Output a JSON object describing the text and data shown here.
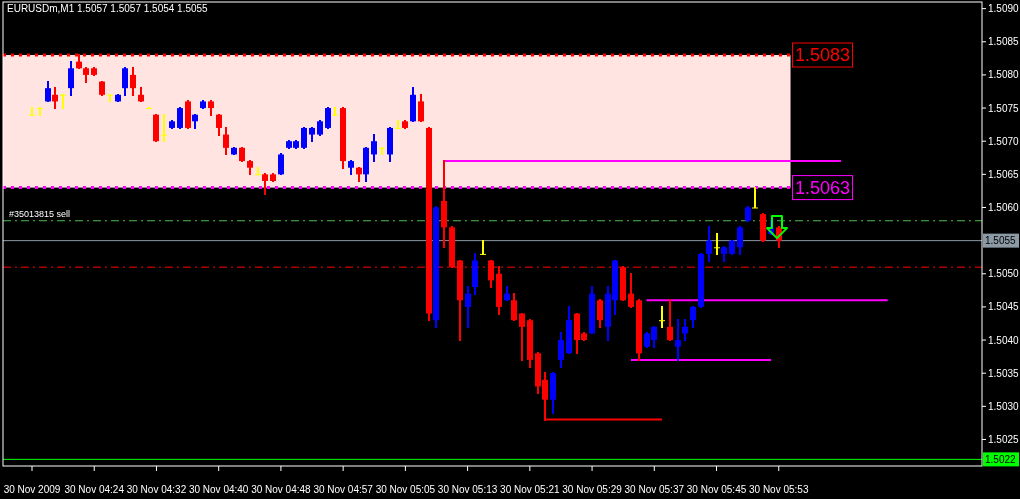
{
  "chart_data": {
    "type": "candlestick",
    "title": "EURUSDm,M1  1.5057 1.5057 1.5054 1.5055",
    "categories": [
      "30 Nov 2009",
      null,
      null,
      null,
      null,
      null,
      null,
      null,
      "30 Nov 04:24",
      null,
      null,
      null,
      null,
      null,
      null,
      null,
      "30 Nov 04:32",
      null,
      null,
      null,
      null,
      null,
      null,
      null,
      "30 Nov 04:40",
      null,
      null,
      null,
      null,
      null,
      null,
      null,
      "30 Nov 04:48",
      null,
      null,
      null,
      null,
      null,
      null,
      null,
      "30 Nov 04:57",
      null,
      null,
      null,
      null,
      null,
      null,
      null,
      "30 Nov 05:05",
      null,
      null,
      null,
      null,
      null,
      null,
      null,
      "30 Nov 05:13",
      null,
      null,
      null,
      null,
      null,
      null,
      null,
      "30 Nov 05:21",
      null,
      null,
      null,
      null,
      null,
      null,
      null,
      "30 Nov 05:29",
      null,
      null,
      null,
      null,
      null,
      null,
      null,
      "30 Nov 05:37",
      null,
      null,
      null,
      null,
      null,
      null,
      null,
      "30 Nov 05:45",
      null,
      null,
      null,
      null,
      null,
      null,
      null,
      "30 Nov 05:53",
      null,
      null,
      null,
      null,
      null,
      null,
      null,
      null,
      null,
      null,
      null,
      null,
      null,
      null,
      null,
      null,
      null,
      null,
      null,
      null,
      null,
      null,
      null,
      null,
      null,
      null
    ],
    "ohlc": [
      [
        1.5074,
        1.5075,
        1.5074,
        1.5074
      ],
      [
        1.5075,
        1.5075,
        1.5074,
        1.5075
      ],
      [
        1.5076,
        1.5079,
        1.5076,
        1.5078
      ],
      [
        1.5077,
        1.5078,
        1.5075,
        1.5076
      ],
      [
        1.5077,
        1.5077,
        1.5075,
        1.5077
      ],
      [
        1.5078,
        1.5082,
        1.5077,
        1.5081
      ],
      [
        1.5082,
        1.5083,
        1.5081,
        1.5081
      ],
      [
        1.5081,
        1.5081,
        1.5079,
        1.508
      ],
      [
        1.5081,
        1.5081,
        1.508,
        1.508
      ],
      [
        1.5079,
        1.5079,
        1.5077,
        1.5077
      ],
      [
        1.5077,
        1.5077,
        1.5076,
        1.5077
      ],
      [
        1.5076,
        1.5077,
        1.5076,
        1.5077
      ],
      [
        1.5078,
        1.5081,
        1.5077,
        1.5081
      ],
      [
        1.508,
        1.5081,
        1.5077,
        1.5078
      ],
      [
        1.5077,
        1.5078,
        1.5076,
        1.5076
      ],
      [
        1.5075,
        1.5075,
        1.5075,
        1.5075
      ],
      [
        1.5074,
        1.5074,
        1.507,
        1.507
      ],
      [
        1.5071,
        1.5074,
        1.507,
        1.5071
      ],
      [
        1.5072,
        1.5073,
        1.5072,
        1.5073
      ],
      [
        1.5072,
        1.5075,
        1.5072,
        1.5075
      ],
      [
        1.5076,
        1.5076,
        1.5072,
        1.5072
      ],
      [
        1.5073,
        1.5074,
        1.5072,
        1.5074
      ],
      [
        1.5075,
        1.5076,
        1.5075,
        1.5076
      ],
      [
        1.5076,
        1.5076,
        1.5074,
        1.5075
      ],
      [
        1.5074,
        1.5074,
        1.5071,
        1.5072
      ],
      [
        1.5071,
        1.5072,
        1.5068,
        1.5069
      ],
      [
        1.5068,
        1.5069,
        1.5068,
        1.5069
      ],
      [
        1.5069,
        1.5069,
        1.5067,
        1.5067
      ],
      [
        1.5067,
        1.5067,
        1.5065,
        1.5066
      ],
      [
        1.5065,
        1.5066,
        1.5065,
        1.5065
      ],
      [
        1.5065,
        1.5065,
        1.5062,
        1.5064
      ],
      [
        1.5065,
        1.5065,
        1.5064,
        1.5064
      ],
      [
        1.5065,
        1.5068,
        1.5065,
        1.5068
      ],
      [
        1.5069,
        1.507,
        1.5069,
        1.507
      ],
      [
        1.5069,
        1.507,
        1.5069,
        1.507
      ],
      [
        1.5069,
        1.5072,
        1.5069,
        1.5072
      ],
      [
        1.5071,
        1.5072,
        1.507,
        1.5072
      ],
      [
        1.5071,
        1.5073,
        1.5071,
        1.5073
      ],
      [
        1.5072,
        1.5075,
        1.5072,
        1.5075
      ],
      [
        1.5074,
        1.5075,
        1.5074,
        1.5074
      ],
      [
        1.5075,
        1.5075,
        1.5066,
        1.5067
      ],
      [
        1.5066,
        1.5067,
        1.5065,
        1.5067
      ],
      [
        1.5066,
        1.5066,
        1.5064,
        1.5065
      ],
      [
        1.5065,
        1.5069,
        1.5064,
        1.5069
      ],
      [
        1.5068,
        1.5071,
        1.5067,
        1.507
      ],
      [
        1.5069,
        1.5069,
        1.5068,
        1.5069
      ],
      [
        1.5068,
        1.5072,
        1.5067,
        1.5072
      ],
      [
        1.5072,
        1.5073,
        1.5072,
        1.5072
      ],
      [
        1.5073,
        1.5073,
        1.5072,
        1.5072
      ],
      [
        1.5073,
        1.5078,
        1.5073,
        1.5077
      ],
      [
        1.5076,
        1.5077,
        1.5073,
        1.5073
      ],
      [
        1.5072,
        1.5072,
        1.5043,
        1.5044
      ],
      [
        1.5043,
        1.506,
        1.5042,
        1.506
      ],
      [
        1.5061,
        1.5067,
        1.5054,
        1.5057
      ],
      [
        1.5057,
        1.5057,
        1.5051,
        1.5051
      ],
      [
        1.5052,
        1.5052,
        1.504,
        1.5046
      ],
      [
        1.5045,
        1.5048,
        1.5042,
        1.5047
      ],
      [
        1.5048,
        1.5053,
        1.5047,
        1.5052
      ],
      [
        1.5053,
        1.5055,
        1.5053,
        1.5053
      ],
      [
        1.5052,
        1.5052,
        1.5048,
        1.5049
      ],
      [
        1.505,
        1.5051,
        1.5044,
        1.5045
      ],
      [
        1.5046,
        1.5048,
        1.5046,
        1.5047
      ],
      [
        1.5046,
        1.5047,
        1.5043,
        1.5043
      ],
      [
        1.5044,
        1.5044,
        1.5037,
        1.5042
      ],
      [
        1.5043,
        1.5043,
        1.5036,
        1.5037
      ],
      [
        1.5038,
        1.5038,
        1.5032,
        1.5033
      ],
      [
        1.5034,
        1.5035,
        1.5028,
        1.5031
      ],
      [
        1.5031,
        1.5035,
        1.5029,
        1.5035
      ],
      [
        1.5037,
        1.5041,
        1.5036,
        1.504
      ],
      [
        1.5038,
        1.5045,
        1.5038,
        1.5043
      ],
      [
        1.5044,
        1.5044,
        1.5038,
        1.504
      ],
      [
        1.5041,
        1.5041,
        1.504,
        1.504
      ],
      [
        1.5041,
        1.5048,
        1.5041,
        1.5047
      ],
      [
        1.5046,
        1.5046,
        1.5042,
        1.5043
      ],
      [
        1.5042,
        1.5048,
        1.504,
        1.5047
      ],
      [
        1.5046,
        1.5052,
        1.5044,
        1.5052
      ],
      [
        1.5051,
        1.5051,
        1.5046,
        1.5046
      ],
      [
        1.5047,
        1.505,
        1.5045,
        1.5045
      ],
      [
        1.5046,
        1.5046,
        1.5037,
        1.5038
      ],
      [
        1.5039,
        1.5041,
        1.5039,
        1.5041
      ],
      [
        1.504,
        1.5042,
        1.5039,
        1.5042
      ],
      [
        1.5043,
        1.5045,
        1.5042,
        1.5043
      ],
      [
        1.5042,
        1.5046,
        1.504,
        1.504
      ],
      [
        1.5039,
        1.5043,
        1.5037,
        1.504
      ],
      [
        1.5041,
        1.5043,
        1.504,
        1.5042
      ],
      [
        1.5043,
        1.5045,
        1.5042,
        1.5045
      ],
      [
        1.5045,
        1.5053,
        1.5045,
        1.5053
      ],
      [
        1.5053,
        1.5057,
        1.5052,
        1.5055
      ],
      [
        1.5054,
        1.5056,
        1.5053,
        1.5054
      ],
      [
        1.5053,
        1.5054,
        1.5052,
        1.5054
      ],
      [
        1.5053,
        1.5055,
        1.5053,
        1.5055
      ],
      [
        1.5054,
        1.5057,
        1.5053,
        1.5057
      ],
      [
        1.5058,
        1.506,
        1.5058,
        1.506
      ],
      [
        1.506,
        1.5063,
        1.506,
        1.506
      ],
      [
        1.5059,
        1.5059,
        1.5055,
        1.5055
      ],
      [
        1.5056,
        1.5058,
        1.5056,
        1.5057
      ],
      [
        1.5057,
        1.5057,
        1.5054,
        1.5055
      ],
      null,
      null,
      null,
      null,
      null,
      null,
      null,
      null,
      null,
      null,
      null,
      null,
      null,
      null,
      null,
      null,
      null,
      null,
      null,
      null,
      null,
      null,
      null,
      null,
      null,
      null
    ],
    "colors": [
      "#ffff00",
      "#ffff00",
      "#0000ff",
      "#ff0000",
      "#ffff00",
      "#0000ff",
      "#ff0000",
      "#ff0000",
      "#ff0000",
      "#ff0000",
      "#ffff00",
      "#0000ff",
      "#0000ff",
      "#ff0000",
      "#ff0000",
      "#ffff00",
      "#ff0000",
      "#ffff00",
      "#0000ff",
      "#0000ff",
      "#ff0000",
      "#0000ff",
      "#0000ff",
      "#ff0000",
      "#ff0000",
      "#ff0000",
      "#0000ff",
      "#ff0000",
      "#ff0000",
      "#ffff00",
      "#ff0000",
      "#ff0000",
      "#0000ff",
      "#0000ff",
      "#0000ff",
      "#0000ff",
      "#0000ff",
      "#0000ff",
      "#0000ff",
      "#ffff00",
      "#ff0000",
      "#0000ff",
      "#ff0000",
      "#0000ff",
      "#0000ff",
      "#ffff00",
      "#0000ff",
      "#ffff00",
      "#ff0000",
      "#0000ff",
      "#ff0000",
      "#ff0000",
      "#0000ff",
      "#ff0000",
      "#ff0000",
      "#ff0000",
      "#0000ff",
      "#0000ff",
      "#ffff00",
      "#ff0000",
      "#ff0000",
      "#0000ff",
      "#ff0000",
      "#ff0000",
      "#ff0000",
      "#ff0000",
      "#ff0000",
      "#0000ff",
      "#0000ff",
      "#0000ff",
      "#ff0000",
      "#ff0000",
      "#0000ff",
      "#ff0000",
      "#0000ff",
      "#0000ff",
      "#ff0000",
      "#ff0000",
      "#ff0000",
      "#0000ff",
      "#0000ff",
      "#ffff00",
      "#ff0000",
      "#0000ff",
      "#0000ff",
      "#0000ff",
      "#0000ff",
      "#0000ff",
      "#ffff00",
      "#0000ff",
      "#0000ff",
      "#0000ff",
      "#0000ff",
      "#ffff00",
      "#ff0000",
      "#0000ff",
      "#ff0000",
      null,
      null,
      null,
      null,
      null,
      null,
      null,
      null,
      null,
      null,
      null,
      null,
      null,
      null,
      null,
      null,
      null,
      null,
      null,
      null,
      null,
      null,
      null,
      null,
      null,
      null
    ],
    "series": [
      {
        "type": "line",
        "color": "#ff00ff",
        "values": [
          null,
          null,
          null,
          null,
          null,
          null,
          null,
          null,
          null,
          null,
          null,
          null,
          null,
          null,
          null,
          null,
          null,
          null,
          null,
          null,
          null,
          null,
          null,
          null,
          null,
          null,
          null,
          null,
          null,
          null,
          null,
          null,
          null,
          null,
          null,
          null,
          null,
          null,
          null,
          null,
          null,
          null,
          null,
          null,
          null,
          null,
          null,
          null,
          null,
          null,
          null,
          null,
          null,
          1.5067,
          1.5067,
          1.5067,
          1.5067,
          1.5067,
          1.5067,
          1.5067,
          1.5067,
          1.5067,
          1.5067,
          1.5067,
          1.5067,
          1.5067,
          1.5067,
          1.5067,
          1.5067,
          1.5067,
          1.5067,
          1.5067,
          1.5067,
          1.5067,
          1.5067,
          1.5067,
          1.5067,
          1.5067,
          1.5067,
          1.5067,
          1.5067,
          1.5067,
          1.5067,
          1.5067,
          1.5067,
          1.5067,
          1.5067,
          1.5067,
          1.5067,
          1.5067,
          1.5067,
          1.5067,
          1.5067,
          1.5067,
          1.5067,
          1.5067,
          1.5067,
          1.5067,
          1.5067,
          1.5067,
          1.5067,
          1.5067,
          1.5067,
          1.5067,
          1.5067,
          null,
          null,
          null,
          null,
          null,
          null,
          null,
          null,
          null,
          null,
          null,
          null,
          null,
          null,
          null,
          null,
          null,
          null
        ]
      },
      {
        "type": "line",
        "color": "#ff00ff",
        "values": [
          null,
          null,
          null,
          null,
          null,
          null,
          null,
          null,
          null,
          null,
          null,
          null,
          null,
          null,
          null,
          null,
          null,
          null,
          null,
          null,
          null,
          null,
          null,
          null,
          null,
          null,
          null,
          null,
          null,
          null,
          null,
          null,
          null,
          null,
          null,
          null,
          null,
          null,
          null,
          null,
          null,
          null,
          null,
          null,
          null,
          null,
          null,
          null,
          null,
          null,
          null,
          null,
          null,
          null,
          null,
          null,
          null,
          null,
          null,
          null,
          null,
          null,
          null,
          null,
          null,
          null,
          null,
          null,
          null,
          null,
          null,
          null,
          null,
          null,
          null,
          null,
          null,
          null,
          null,
          1.5046,
          1.5046,
          1.5046,
          1.5046,
          1.5046,
          1.5046,
          1.5046,
          1.5046,
          1.5046,
          1.5046,
          1.5046,
          1.5046,
          1.5046,
          1.5046,
          1.5046,
          1.5046,
          1.5046,
          1.5046,
          1.5046,
          1.5046,
          1.5046,
          1.5046,
          1.5046,
          1.5046,
          1.5046,
          1.5046,
          1.5046,
          1.5046,
          1.5046,
          1.5046,
          1.5046,
          1.5046,
          null,
          null,
          null,
          null,
          null,
          null,
          null,
          null,
          null,
          null,
          null,
          null
        ]
      },
      {
        "type": "line",
        "color": "#ff00ff",
        "values": [
          null,
          null,
          null,
          null,
          null,
          null,
          null,
          null,
          null,
          null,
          null,
          null,
          null,
          null,
          null,
          null,
          null,
          null,
          null,
          null,
          null,
          null,
          null,
          null,
          null,
          null,
          null,
          null,
          null,
          null,
          null,
          null,
          null,
          null,
          null,
          null,
          null,
          null,
          null,
          null,
          null,
          null,
          null,
          null,
          null,
          null,
          null,
          null,
          null,
          null,
          null,
          null,
          null,
          null,
          null,
          null,
          null,
          null,
          null,
          null,
          null,
          null,
          null,
          null,
          null,
          null,
          null,
          null,
          null,
          null,
          null,
          null,
          null,
          null,
          null,
          null,
          null,
          1.5037,
          1.5037,
          1.5037,
          1.5037,
          1.5037,
          1.5037,
          1.5037,
          1.5037,
          1.5037,
          1.5037,
          1.5037,
          1.5037,
          1.5037,
          1.5037,
          1.5037,
          1.5037,
          1.5037,
          1.5037,
          1.5037,
          null,
          null,
          null,
          null,
          null,
          null,
          null,
          null,
          null,
          null,
          null,
          null,
          null,
          null,
          null,
          null,
          null,
          null,
          null,
          null,
          null,
          null,
          null,
          null,
          null,
          null,
          null
        ]
      },
      {
        "type": "line",
        "color": "#ff0000",
        "values": [
          null,
          null,
          null,
          null,
          null,
          null,
          null,
          null,
          null,
          null,
          null,
          null,
          null,
          null,
          null,
          null,
          null,
          null,
          null,
          null,
          null,
          null,
          null,
          null,
          null,
          null,
          null,
          null,
          null,
          null,
          null,
          null,
          null,
          null,
          null,
          null,
          null,
          null,
          null,
          null,
          null,
          null,
          null,
          null,
          null,
          null,
          null,
          null,
          null,
          null,
          null,
          null,
          null,
          null,
          null,
          null,
          null,
          null,
          null,
          null,
          null,
          null,
          null,
          null,
          null,
          null,
          1.5028,
          1.5028,
          1.5028,
          1.5028,
          1.5028,
          1.5028,
          1.5028,
          1.5028,
          1.5028,
          1.5028,
          1.5028,
          1.5028,
          1.5028,
          1.5028,
          1.5028,
          1.5028,
          null,
          null,
          null,
          null,
          null,
          null,
          null,
          null,
          null,
          null,
          null,
          null,
          null,
          null,
          null,
          null,
          null,
          null,
          null,
          null,
          null,
          null,
          null,
          null,
          null,
          null,
          null,
          null,
          null,
          null,
          null,
          null,
          null,
          null,
          null,
          null,
          null,
          null,
          null,
          null,
          null
        ]
      }
    ],
    "ylim": [
      1.5021,
      1.5091
    ],
    "yticks": [
      {
        "value": 1.509,
        "label": "1.5090"
      },
      {
        "value": 1.5085,
        "label": "1.5085"
      },
      {
        "value": 1.508,
        "label": "1.5080"
      },
      {
        "value": 1.5075,
        "label": "1.5075"
      },
      {
        "value": 1.507,
        "label": "1.5070"
      },
      {
        "value": 1.5065,
        "label": "1.5065"
      },
      {
        "value": 1.506,
        "label": "1.5060"
      },
      {
        "value": 1.505,
        "label": "1.5050"
      },
      {
        "value": 1.5045,
        "label": "1.5045"
      },
      {
        "value": 1.504,
        "label": "1.5040"
      },
      {
        "value": 1.5035,
        "label": "1.5035"
      },
      {
        "value": 1.503,
        "label": "1.5030"
      },
      {
        "value": 1.5025,
        "label": "1.5025"
      }
    ],
    "bands": [
      {
        "axis": "y",
        "from": 1.5063,
        "to": 1.5083,
        "color": "#ffe4e1"
      }
    ],
    "ref_lines": [
      {
        "axis": "y",
        "value": 1.5083,
        "label": "1.5083",
        "color": "#ff0000",
        "line_style": "dotted"
      },
      {
        "axis": "y",
        "value": 1.5063,
        "label": "1.5063",
        "color": "#ff00ff",
        "line_style": "dotted"
      },
      {
        "axis": "y",
        "value": 1.5058,
        "label": "#35013815 sell",
        "color": "#4cbb4c",
        "line_style": "dashed"
      },
      {
        "axis": "y",
        "value": 1.5055,
        "label": "1.5055",
        "color": "#8c9aa5",
        "line_style": "solid"
      },
      {
        "axis": "y",
        "value": 1.5051,
        "color": "#ff0000",
        "line_style": "dashed"
      },
      {
        "axis": "y",
        "value": 1.5022,
        "label": "1.5022",
        "color": "#00ff00",
        "line_style": "solid"
      }
    ]
  }
}
